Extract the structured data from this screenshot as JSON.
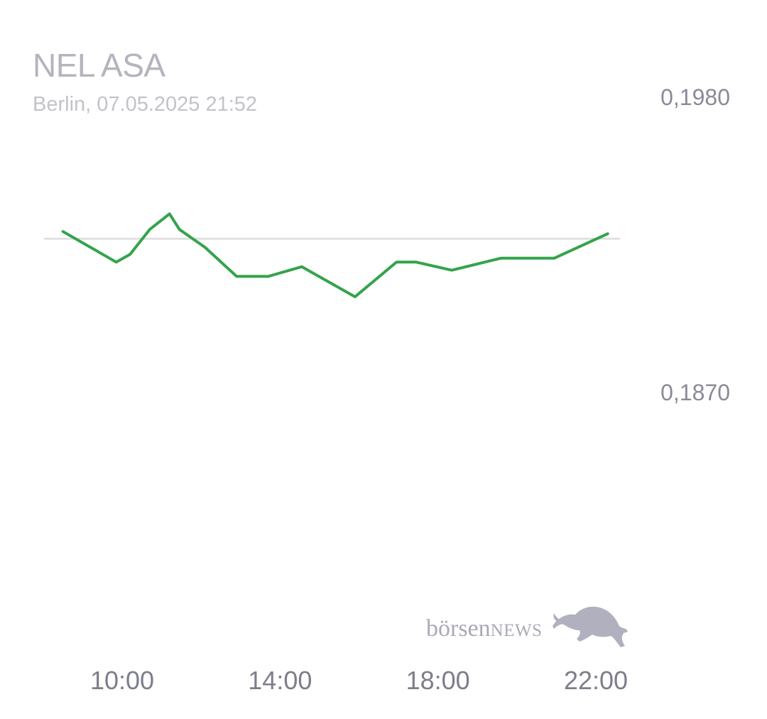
{
  "chart_data": {
    "type": "line",
    "title": "NEL ASA",
    "subtitle": "Berlin, 07.05.2025 21:52",
    "xlabel": "",
    "ylabel": "",
    "y_tick_labels": [
      "0,1980",
      "0,1870"
    ],
    "y_ticks": [
      0.198,
      0.187
    ],
    "ylim": [
      0.187,
      0.198
    ],
    "x_tick_labels": [
      "10:00",
      "14:00",
      "18:00",
      "22:00"
    ],
    "x_ticks": [
      10,
      14,
      18,
      22
    ],
    "xlim": [
      8.5,
      22.15
    ],
    "reference_value": 0.1927,
    "grid": false,
    "line_color": "#34a34c",
    "reference_color": "#dcdcdc",
    "series": [
      {
        "name": "",
        "x": [
          8.5,
          9.85,
          10.2,
          10.7,
          11.2,
          11.45,
          12.1,
          12.9,
          13.7,
          14.55,
          15.9,
          16.95,
          17.45,
          18.35,
          19.6,
          20.95,
          22.3
        ],
        "y": [
          0.19297,
          0.19183,
          0.19212,
          0.19305,
          0.19363,
          0.19305,
          0.19238,
          0.1913,
          0.1913,
          0.19166,
          0.19054,
          0.19183,
          0.19183,
          0.19153,
          0.19198,
          0.19198,
          0.19289
        ]
      }
    ]
  },
  "brand": {
    "part1": "börsen",
    "part2": "NEWS",
    "icon": "bull-icon"
  }
}
